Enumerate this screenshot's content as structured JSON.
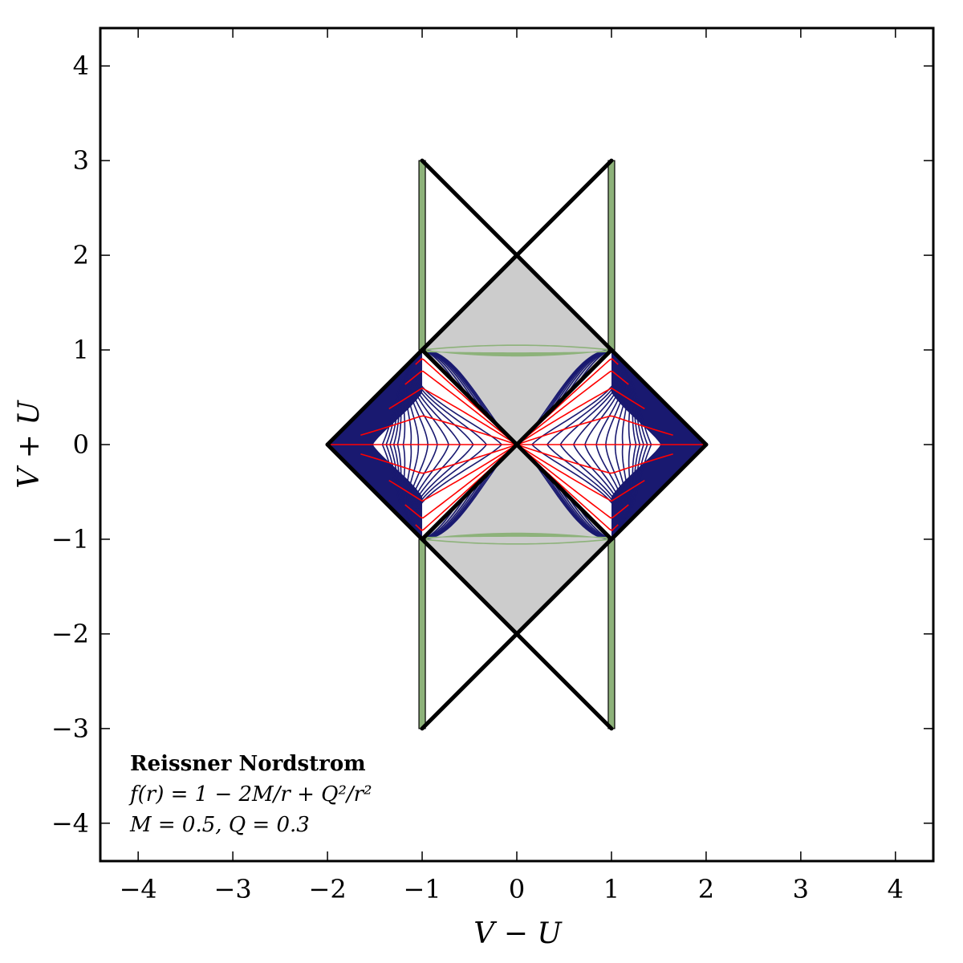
{
  "chart_data": {
    "type": "line",
    "title": "",
    "xlabel": "V − U",
    "ylabel": "V + U",
    "xlim": [
      -4.4,
      4.4
    ],
    "ylim": [
      -4.4,
      4.4
    ],
    "xticks": [
      -4,
      -3,
      -2,
      -1,
      0,
      1,
      2,
      3,
      4
    ],
    "yticks": [
      -4,
      -3,
      -2,
      -1,
      0,
      1,
      2,
      3,
      4
    ],
    "xtick_labels": [
      "−4",
      "−3",
      "−2",
      "−1",
      "0",
      "1",
      "2",
      "3",
      "4"
    ],
    "ytick_labels": [
      "−4",
      "−3",
      "−2",
      "−1",
      "0",
      "1",
      "2",
      "3",
      "4"
    ],
    "grid": false,
    "annotation": {
      "title": "Reissner Nordstrom",
      "line1": "f(r) = 1 − 2M/r + Q²/r²",
      "line2": "M = 0.5, Q = 0.3",
      "placement": "bottom-left"
    },
    "colors": {
      "boundary": "#000000",
      "interior": "#cccccc",
      "exterior_fill": "#191970",
      "constant_r": "#191970",
      "constant_t": "#ff0000",
      "singularity": "#8db27a"
    },
    "regions": [
      {
        "name": "exterior-right",
        "fill": "#191970",
        "vertices": [
          [
            0,
            0
          ],
          [
            1,
            1
          ],
          [
            2,
            0
          ],
          [
            1,
            -1
          ]
        ]
      },
      {
        "name": "exterior-left",
        "fill": "#191970",
        "vertices": [
          [
            0,
            0
          ],
          [
            -1,
            1
          ],
          [
            -2,
            0
          ],
          [
            -1,
            -1
          ]
        ]
      },
      {
        "name": "interior-top",
        "fill": "#cccccc",
        "vertices": [
          [
            0,
            0
          ],
          [
            1,
            1
          ],
          [
            0,
            2
          ],
          [
            -1,
            1
          ]
        ]
      },
      {
        "name": "interior-bottom",
        "fill": "#cccccc",
        "vertices": [
          [
            0,
            0
          ],
          [
            1,
            -1
          ],
          [
            0,
            -2
          ],
          [
            -1,
            -1
          ]
        ]
      }
    ],
    "boundary_segments": [
      [
        [
          -2,
          0
        ],
        [
          -1,
          1
        ]
      ],
      [
        [
          -1,
          1
        ],
        [
          1,
          3
        ]
      ],
      [
        [
          1,
          1
        ],
        [
          -1,
          3
        ]
      ],
      [
        [
          1,
          1
        ],
        [
          2,
          0
        ]
      ],
      [
        [
          2,
          0
        ],
        [
          1,
          -1
        ]
      ],
      [
        [
          1,
          -1
        ],
        [
          -1,
          -3
        ]
      ],
      [
        [
          -1,
          -1
        ],
        [
          1,
          -3
        ]
      ],
      [
        [
          -2,
          0
        ],
        [
          -1,
          -1
        ]
      ],
      [
        [
          -1,
          -1
        ],
        [
          1,
          1
        ]
      ],
      [
        [
          -1,
          1
        ],
        [
          1,
          -1
        ]
      ]
    ],
    "singularity_lines": [
      {
        "x": -1,
        "y_range": [
          1,
          3
        ]
      },
      {
        "x": 1,
        "y_range": [
          1,
          3
        ]
      },
      {
        "x": -1,
        "y_range": [
          -3,
          -1
        ]
      },
      {
        "x": 1,
        "y_range": [
          -3,
          -1
        ]
      }
    ],
    "constant_r_exterior_extents": [
      0.92,
      0.84,
      0.77,
      0.7,
      0.64,
      0.58,
      0.53,
      0.48,
      0.44,
      0.4,
      0.37,
      0.35,
      0.33,
      0.31,
      0.29
    ],
    "constant_t_exterior_ratios": [
      0.0,
      0.35,
      0.65,
      0.82,
      0.93,
      1.0
    ],
    "constant_r_interior_depths": [
      0.44,
      0.65,
      0.75,
      0.82,
      0.87,
      0.91,
      0.94,
      0.97
    ],
    "inner_horizon_band": {
      "y": 0.97,
      "thickness": 0.035,
      "label_curve_depth": 1.05
    }
  }
}
